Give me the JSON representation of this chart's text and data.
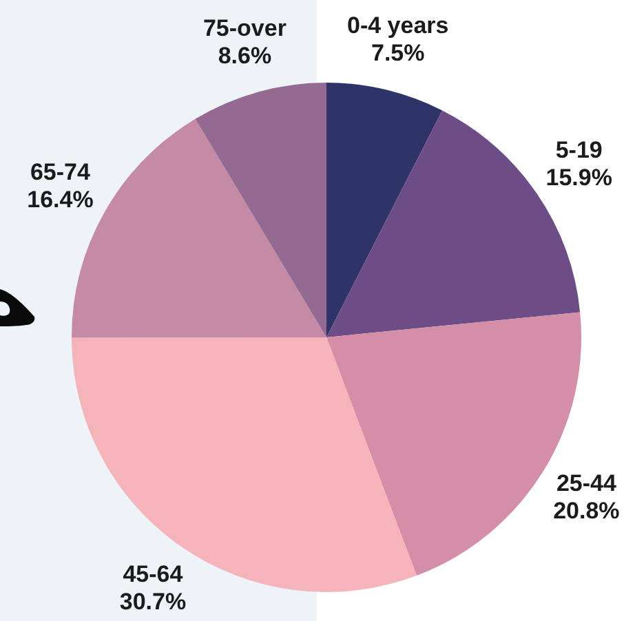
{
  "chart_data": {
    "type": "pie",
    "categories": [
      "0-4 years",
      "5-19",
      "25-44",
      "45-64",
      "65-74",
      "75-over"
    ],
    "values": [
      7.5,
      15.9,
      20.8,
      30.7,
      16.4,
      8.6
    ],
    "colors": [
      "#2e3468",
      "#6e4c86",
      "#d48ea8",
      "#f5b3ba",
      "#c58aa5",
      "#956a92"
    ],
    "value_labels": [
      "7.5%",
      "15.9%",
      "20.8%",
      "30.7%",
      "16.4%",
      "8.6%"
    ],
    "legend": false
  }
}
